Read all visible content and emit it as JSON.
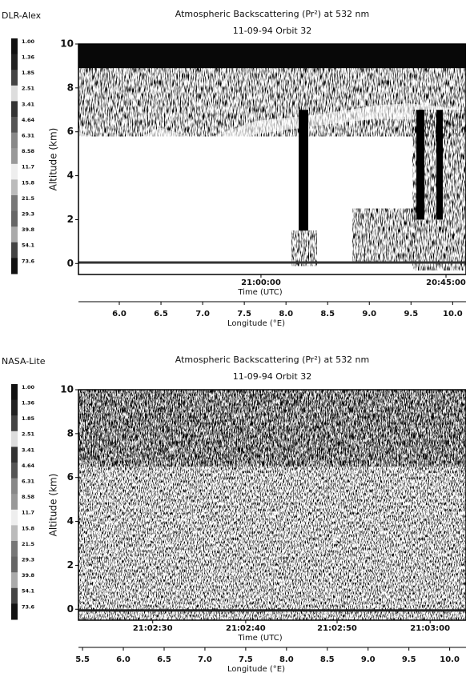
{
  "chart_data": [
    {
      "type": "heatmap",
      "instrument": "DLR-Alex",
      "title": "Atmospheric Backscattering (Pr²) at 532 nm",
      "subtitle": "11-09-94 Orbit 32",
      "ylabel": "Altitude (km)",
      "ylim": [
        -0.5,
        10
      ],
      "yticks": [
        0,
        2,
        4,
        6,
        8,
        10
      ],
      "colorbar_labels": [
        "1.00",
        "1.36",
        "1.85",
        "2.51",
        "3.41",
        "4.64",
        "6.31",
        "8.58",
        "11.7",
        "15.8",
        "21.5",
        "29.3",
        "39.8",
        "54.1",
        "73.6"
      ],
      "time_label": "Time (UTC)",
      "time_ticks": [
        {
          "value": 7.7,
          "label": "21:00:00"
        },
        {
          "value": 9.92,
          "label": "20:45:00"
        }
      ],
      "xlabel": "Longitude (°E)",
      "xlim": [
        5.51,
        10.16
      ],
      "xticks": [
        {
          "value": 6,
          "label": "6.0"
        },
        6.5,
        {
          "value": 7,
          "label": "7.0"
        },
        7.5,
        {
          "value": 8,
          "label": "8.0"
        },
        8.5,
        {
          "value": 9,
          "label": "9.0"
        },
        9.5,
        {
          "value": 10,
          "label": "10.0"
        }
      ]
    },
    {
      "type": "heatmap",
      "instrument": "NASA-Lite",
      "title": "Atmospheric Backscattering (Pr²) at 532 nm",
      "subtitle": "11-09-94 Orbit 32",
      "ylabel": "Altitude (km)",
      "ylim": [
        -0.5,
        10
      ],
      "yticks": [
        0,
        2,
        4,
        6,
        8,
        10
      ],
      "colorbar_labels": [
        "1.00",
        "1.36",
        "1.85",
        "2.51",
        "3.41",
        "4.64",
        "6.31",
        "8.58",
        "11.7",
        "15.8",
        "21.5",
        "29.3",
        "39.8",
        "54.1",
        "73.6"
      ],
      "time_label": "Time (UTC)",
      "time_ticks": [
        {
          "value": 6.36,
          "label": "21:02:30"
        },
        {
          "value": 7.5,
          "label": "21:02:40"
        },
        {
          "value": 8.62,
          "label": "21:02:50"
        },
        {
          "value": 9.76,
          "label": "21:03:00"
        }
      ],
      "xlabel": "Longitude (°E)",
      "xlim": [
        5.45,
        10.2
      ],
      "xticks": [
        5.5,
        {
          "value": 6,
          "label": "6.0"
        },
        6.5,
        {
          "value": 7,
          "label": "7.0"
        },
        7.5,
        {
          "value": 8,
          "label": "8.0"
        },
        8.5,
        {
          "value": 9,
          "label": "9.0"
        },
        9.5,
        {
          "value": 10,
          "label": "10.0"
        }
      ]
    }
  ]
}
